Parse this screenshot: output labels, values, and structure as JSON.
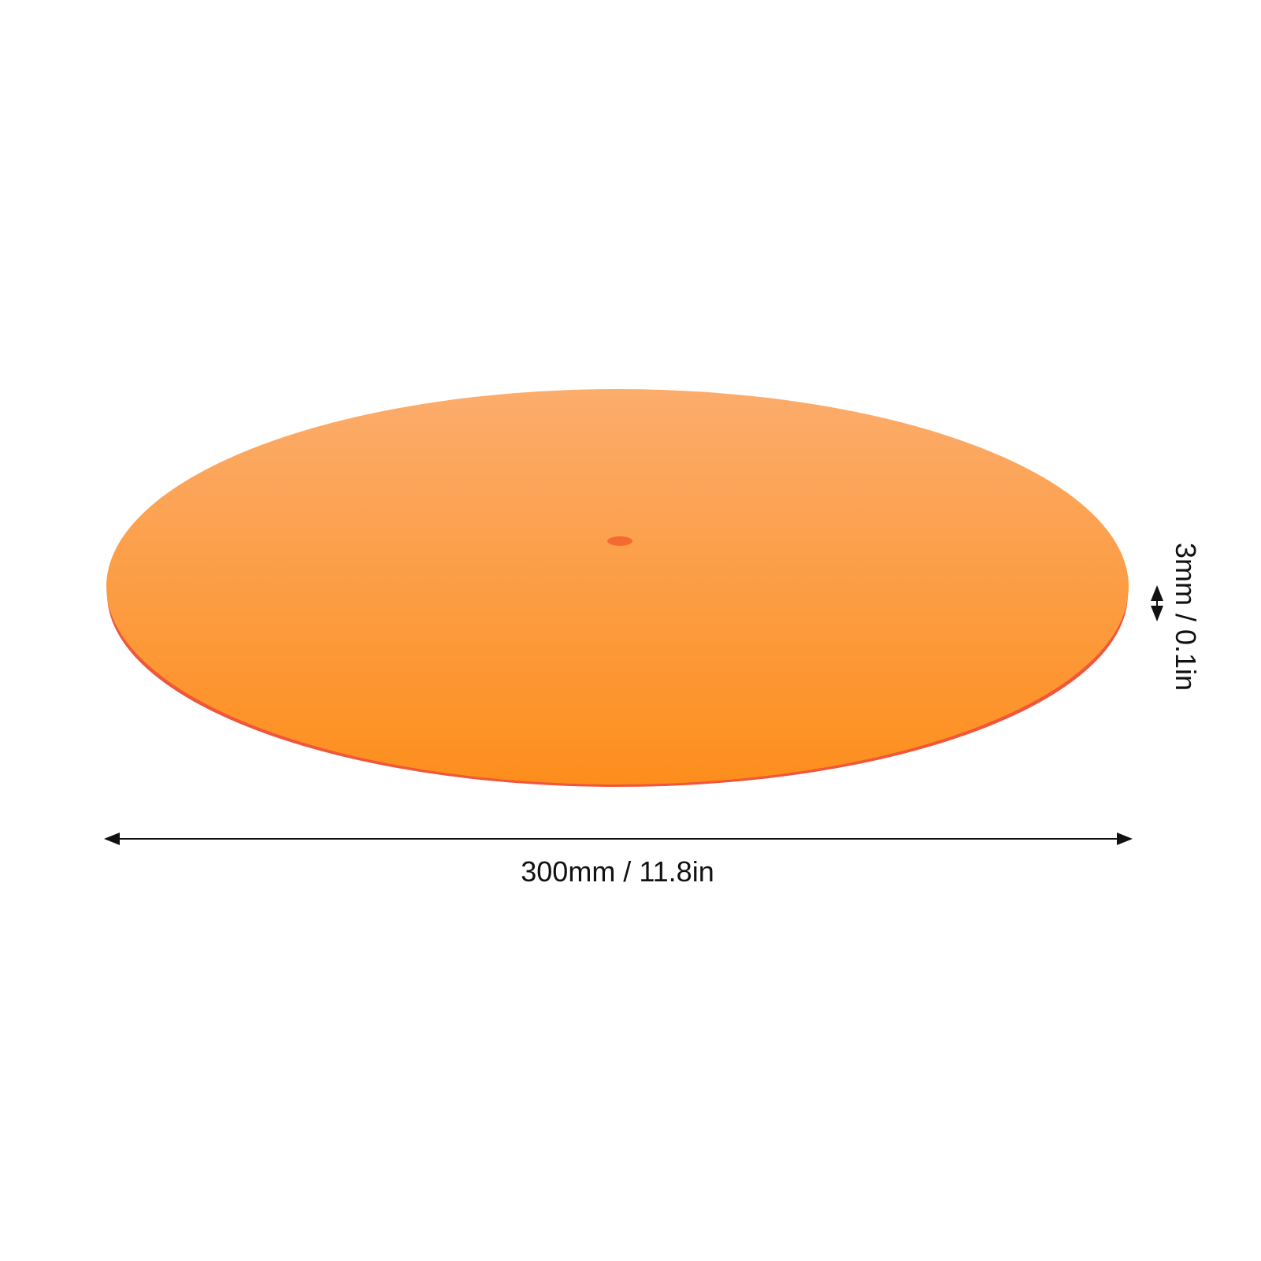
{
  "product": {
    "name": "orange acrylic disc",
    "colors": {
      "top": "#fcac6c",
      "bottom": "#fd8e1c",
      "edge": "#f0563a"
    }
  },
  "dimensions": {
    "width_label": "300mm / 11.8in",
    "thickness_label": "3mm / 0.1in"
  }
}
